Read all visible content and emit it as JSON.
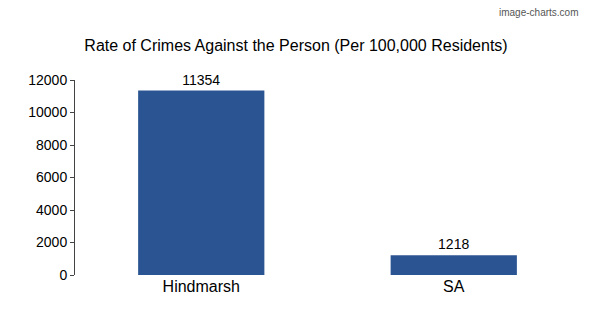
{
  "chart_data": {
    "type": "bar",
    "title": "Rate of Crimes Against the Person (Per 100,000 Residents)",
    "categories": [
      "Hindmarsh",
      "SA"
    ],
    "values": [
      11354,
      1218
    ],
    "color": "#2b5592",
    "ylim": [
      0,
      12000
    ],
    "yticks": [
      0,
      2000,
      4000,
      6000,
      8000,
      10000,
      12000
    ],
    "grid": false,
    "data_labels": true,
    "annotations": [
      "image-charts.com"
    ]
  }
}
